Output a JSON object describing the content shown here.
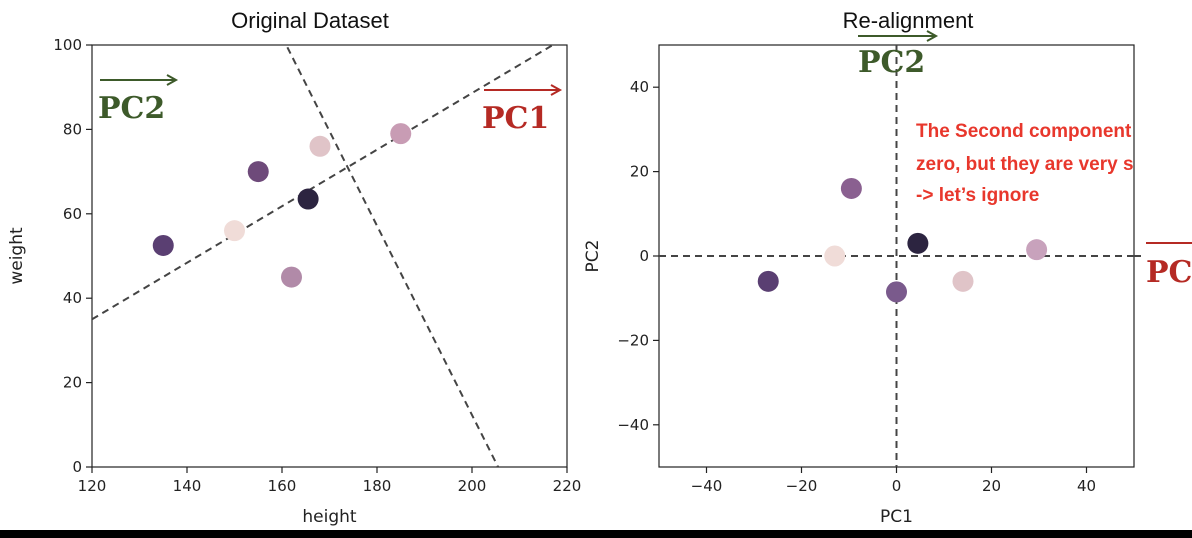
{
  "chart_data": [
    {
      "type": "scatter",
      "title": "Original Dataset",
      "xlabel": "height",
      "ylabel": "weight",
      "xlim": [
        120,
        220
      ],
      "ylim": [
        0,
        100
      ],
      "xticks": [
        120,
        140,
        160,
        180,
        200,
        220
      ],
      "yticks": [
        0,
        20,
        40,
        60,
        80,
        100
      ],
      "grid": false,
      "points": [
        {
          "x": 135,
          "y": 52.5,
          "color": "#5a3f72"
        },
        {
          "x": 150,
          "y": 56,
          "color": "#f0dcd8"
        },
        {
          "x": 155,
          "y": 70,
          "color": "#6e4a7a"
        },
        {
          "x": 162,
          "y": 45,
          "color": "#b18aa8"
        },
        {
          "x": 165.5,
          "y": 63.5,
          "color": "#2c2440"
        },
        {
          "x": 168,
          "y": 76,
          "color": "#e0c4c8"
        },
        {
          "x": 185,
          "y": 79,
          "color": "#c89cb4"
        }
      ],
      "lines": [
        {
          "name": "PC1",
          "x": [
            120,
            220
          ],
          "y": [
            35,
            102
          ],
          "style": "dashed"
        },
        {
          "name": "PC2",
          "x": [
            160,
            205.5
          ],
          "y": [
            102,
            0
          ],
          "style": "dashed"
        }
      ],
      "annotations": [
        {
          "text": "PC2",
          "color": "#3d5a2a",
          "arrow": true
        },
        {
          "text": "PC1",
          "color": "#b52a24",
          "arrow": true
        }
      ]
    },
    {
      "type": "scatter",
      "title": "Re-alignment",
      "xlabel": "PC1",
      "ylabel": "PC2",
      "xlim": [
        -50,
        50
      ],
      "ylim": [
        -50,
        50
      ],
      "xticks": [
        -40,
        -20,
        0,
        20,
        40
      ],
      "yticks": [
        -40,
        -20,
        0,
        20,
        40
      ],
      "grid": false,
      "points": [
        {
          "x": -27,
          "y": -6,
          "color": "#5a3f72"
        },
        {
          "x": -13,
          "y": 0,
          "color": "#f0dcd8"
        },
        {
          "x": -9.5,
          "y": 16,
          "color": "#8a6090"
        },
        {
          "x": 0,
          "y": -8.5,
          "color": "#7a5a8c"
        },
        {
          "x": 4.5,
          "y": 3,
          "color": "#2c2440"
        },
        {
          "x": 14,
          "y": -6,
          "color": "#e0c4c8"
        },
        {
          "x": 29.5,
          "y": 1.5,
          "color": "#c8a2bc"
        }
      ],
      "lines": [
        {
          "name": "PC1",
          "orientation": "horizontal",
          "value": 0,
          "style": "dashed"
        },
        {
          "name": "PC2",
          "orientation": "vertical",
          "value": 0,
          "style": "dashed"
        }
      ],
      "annotations": [
        {
          "text": "PC2",
          "color": "#3d5a2a",
          "arrow": true
        },
        {
          "text": "PC",
          "color": "#b52a24",
          "arrow": false
        },
        {
          "text": "The Second component",
          "color": "#e8372c"
        },
        {
          "text": "zero, but they are very s",
          "color": "#e8372c"
        },
        {
          "text": "-> let’s ignore",
          "color": "#e8372c"
        }
      ]
    }
  ]
}
